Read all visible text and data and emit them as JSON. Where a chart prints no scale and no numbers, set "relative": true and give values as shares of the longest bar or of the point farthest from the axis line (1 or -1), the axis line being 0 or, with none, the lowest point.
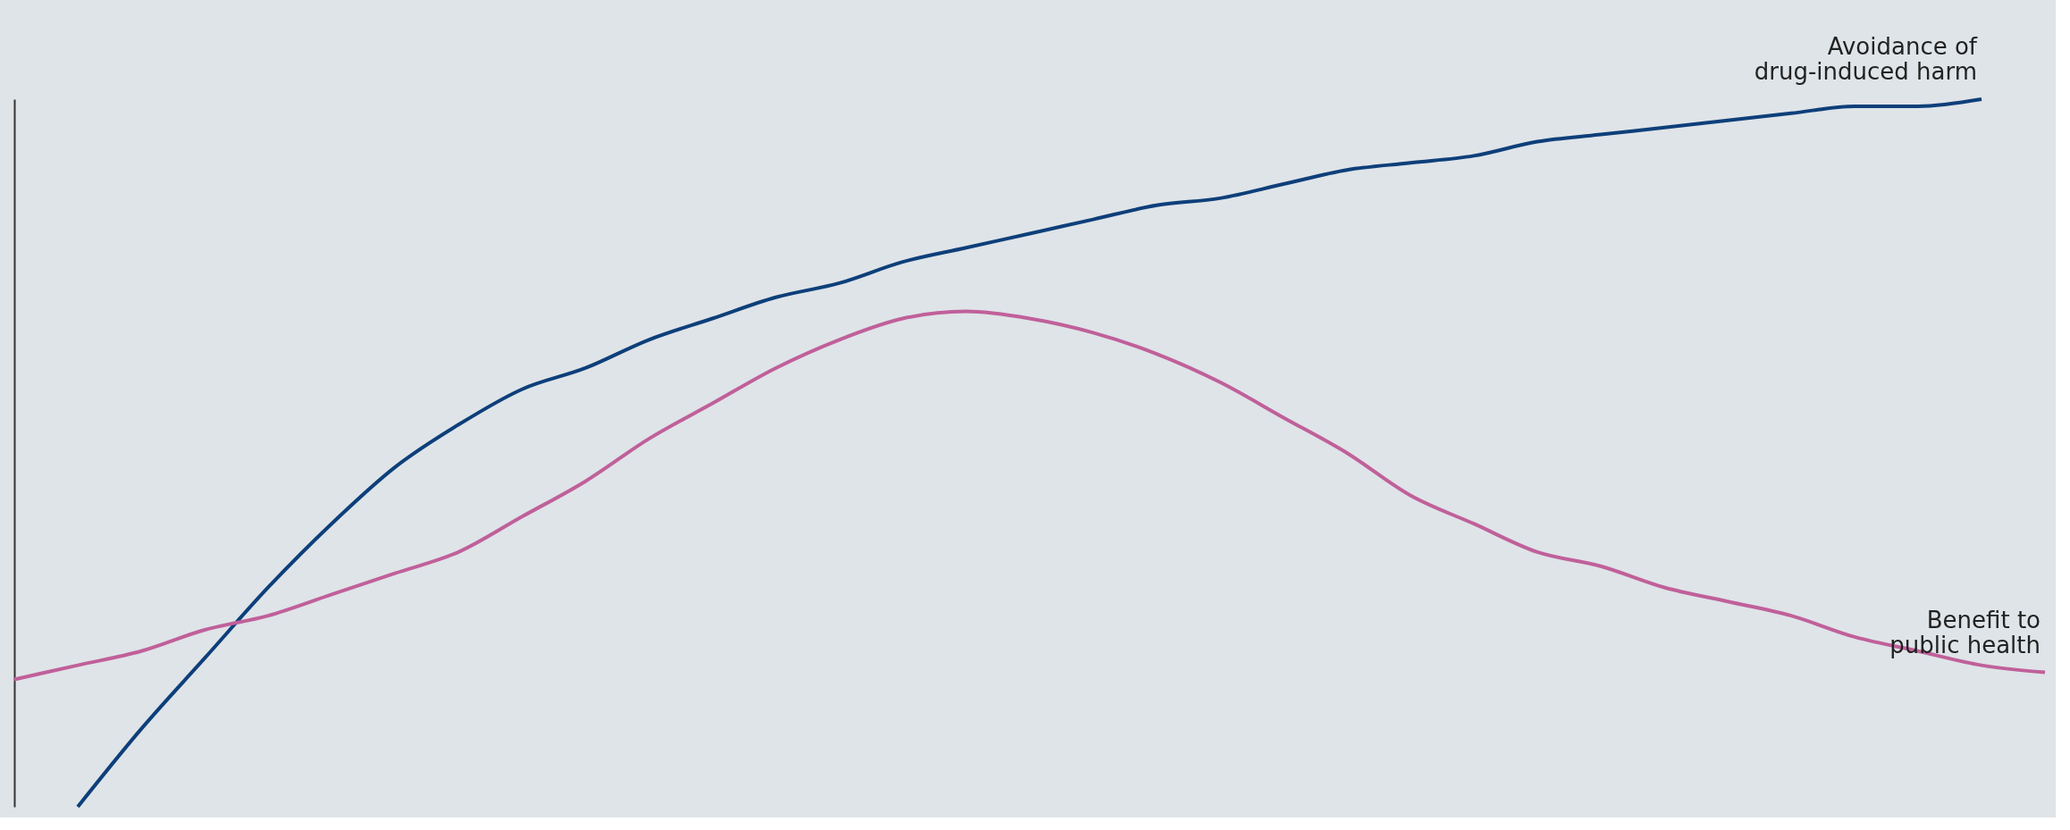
{
  "chart_data": {
    "type": "line",
    "relative": true,
    "legend": false,
    "grid": false,
    "marker": "none",
    "line_style": "solid",
    "categories": [
      null,
      null,
      null,
      null,
      null,
      null,
      null,
      null,
      null,
      null,
      null,
      null,
      null,
      null,
      null,
      null,
      null,
      null,
      null,
      null,
      null,
      null,
      null,
      null,
      null,
      null,
      null,
      null,
      null,
      null,
      null,
      null,
      null
    ],
    "series": [
      {
        "name": "Avoidance of\ndrug-induced harm",
        "color": "#0d3f7a",
        "values": [
          null,
          0.0,
          0.11,
          0.21,
          0.31,
          0.4,
          0.48,
          0.54,
          0.59,
          0.62,
          0.66,
          0.69,
          0.72,
          0.74,
          0.77,
          0.79,
          0.81,
          0.83,
          0.85,
          0.86,
          0.88,
          0.9,
          0.91,
          0.92,
          0.94,
          0.95,
          0.96,
          0.97,
          0.98,
          0.99,
          0.99,
          1.0,
          null
        ]
      },
      {
        "name": "Benefit to\npublic health",
        "color": "#c0609a",
        "values": [
          0.18,
          0.2,
          0.22,
          0.25,
          0.27,
          0.3,
          0.33,
          0.36,
          0.41,
          0.46,
          0.52,
          0.57,
          0.62,
          0.66,
          0.69,
          0.7,
          0.69,
          0.67,
          0.64,
          0.6,
          0.55,
          0.5,
          0.44,
          0.4,
          0.36,
          0.34,
          0.31,
          0.29,
          0.27,
          0.24,
          0.22,
          0.2,
          0.19
        ]
      }
    ]
  }
}
